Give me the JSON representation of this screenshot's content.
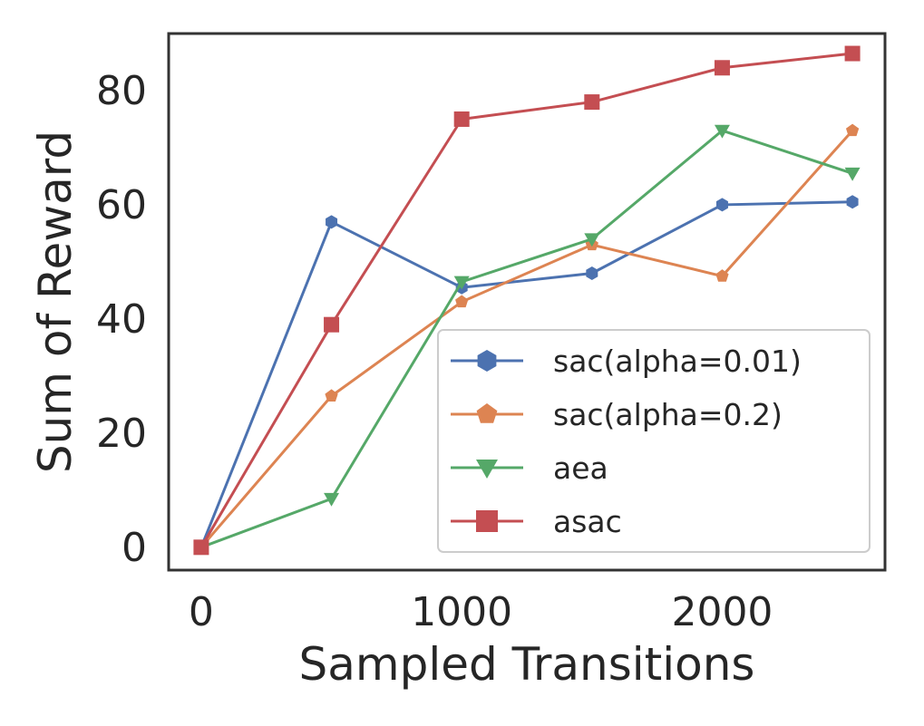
{
  "chart_data": {
    "type": "line",
    "title": "",
    "xlabel": "Sampled Transitions",
    "ylabel": "Sum of Reward",
    "xlim": [
      -125,
      2625
    ],
    "ylim": [
      -4,
      90
    ],
    "xticks": [
      0,
      1000,
      2000
    ],
    "yticks": [
      0,
      20,
      40,
      60,
      80
    ],
    "xtick_labels": [
      "0",
      "1000",
      "2000"
    ],
    "ytick_labels": [
      "0",
      "20",
      "40",
      "60",
      "80"
    ],
    "grid": false,
    "legend_position": "lower-right",
    "x": [
      0,
      500,
      1000,
      1500,
      2000,
      2500
    ],
    "series": [
      {
        "name": "sac(alpha=0.01)",
        "color": "#4c72b0",
        "marker": "hexagon",
        "values": [
          0,
          57,
          45.5,
          48,
          60,
          60.5
        ]
      },
      {
        "name": "sac(alpha=0.2)",
        "color": "#dd8452",
        "marker": "pentagon",
        "values": [
          0,
          26.5,
          43,
          53,
          47.5,
          73
        ]
      },
      {
        "name": "aea",
        "color": "#55a868",
        "marker": "triangle-down",
        "values": [
          0,
          8.5,
          46.5,
          54,
          73,
          65.5
        ]
      },
      {
        "name": "asac",
        "color": "#c44e52",
        "marker": "square",
        "values": [
          0,
          39,
          75,
          78,
          84,
          86.5
        ]
      }
    ]
  }
}
